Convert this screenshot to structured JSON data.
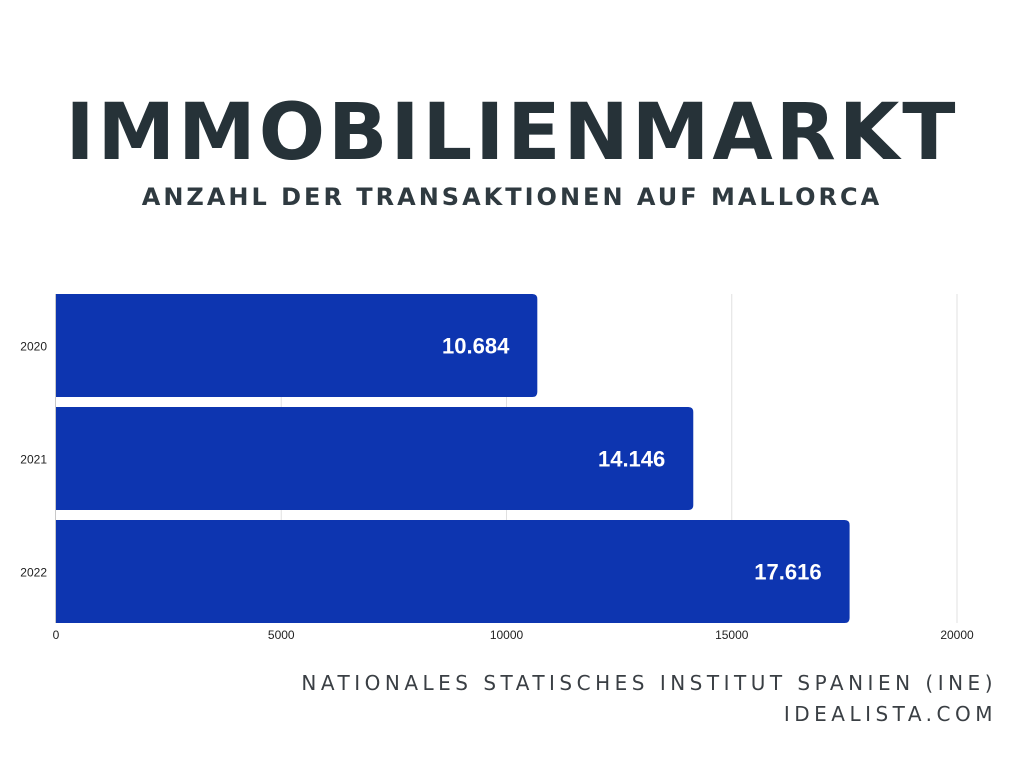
{
  "header": {
    "title": "IMMOBILIENMARKT",
    "subtitle": "ANZAHL DER TRANSAKTIONEN AUF MALLORCA"
  },
  "footer": {
    "source_line_1": "NATIONALES STATISCHES INSTITUT SPANIEN (INE)",
    "source_line_2": "IDEALISTA.COM"
  },
  "colors": {
    "bar": "#0d35b0",
    "title": "#263238",
    "grid": "#e0e0e0",
    "tick_text": "#222222",
    "value_label": "#ffffff"
  },
  "chart_data": {
    "type": "bar",
    "orientation": "horizontal",
    "categories": [
      "2020",
      "2021",
      "2022"
    ],
    "values": [
      10684,
      14146,
      17616
    ],
    "value_labels": [
      "10.684",
      "14.146",
      "17.616"
    ],
    "xlim": [
      0,
      20000
    ],
    "x_ticks": [
      0,
      5000,
      10000,
      15000,
      20000
    ],
    "x_tick_labels": [
      "0",
      "5000",
      "10000",
      "15000",
      "20000"
    ],
    "grid": true,
    "legend": "none"
  }
}
